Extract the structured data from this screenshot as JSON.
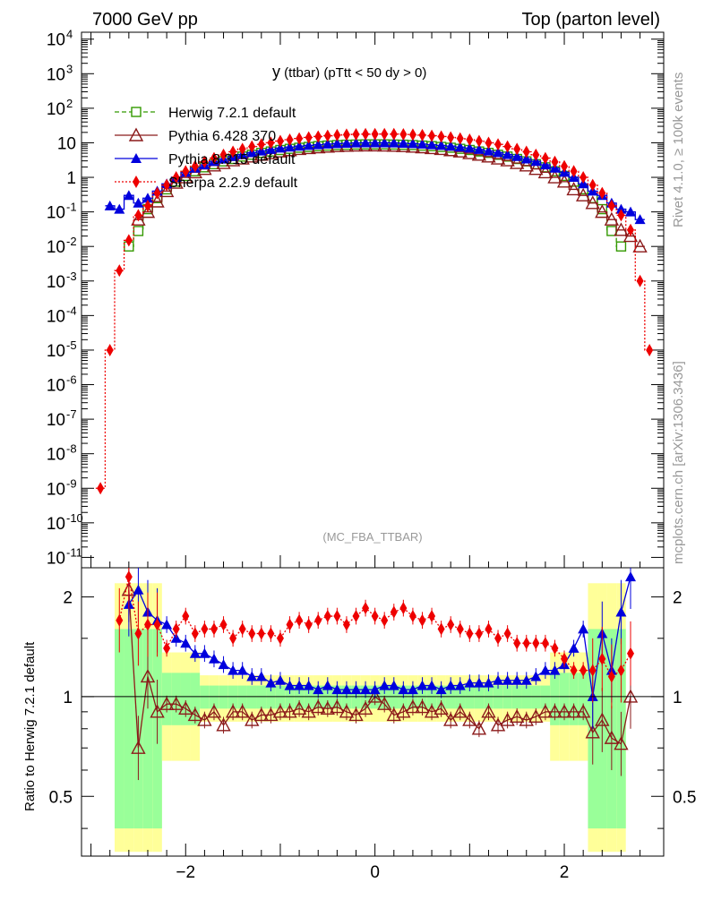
{
  "header": {
    "left": "7000 GeV pp",
    "right": "Top (parton level)"
  },
  "side": {
    "top_label": "Rivet 4.1.0, ≥ 100k events",
    "bottom_label": "mcplots.cern.ch [arXiv:1306.3436]"
  },
  "plot": {
    "title_main": "y",
    "title_sub": " (ttbar) (pTtt < 50 dy > 0)",
    "analysis_id": "(MC_FBA_TTBAR)"
  },
  "ratio": {
    "ylabel": "Ratio to Herwig 7.2.1 default",
    "yticks": [
      {
        "v": 0.5,
        "label": "0.5"
      },
      {
        "v": 1,
        "label": "1"
      },
      {
        "v": 2,
        "label": "2"
      }
    ]
  },
  "main_yticks": [
    {
      "e": -11,
      "label": "10"
    },
    {
      "e": -10,
      "label": "10"
    },
    {
      "e": -9,
      "label": "10"
    },
    {
      "e": -8,
      "label": "10"
    },
    {
      "e": -7,
      "label": "10"
    },
    {
      "e": -6,
      "label": "10"
    },
    {
      "e": -5,
      "label": "10"
    },
    {
      "e": -4,
      "label": "10"
    },
    {
      "e": -3,
      "label": "10"
    },
    {
      "e": -2,
      "label": "10"
    },
    {
      "e": -1,
      "label": "10"
    },
    {
      "e": 0,
      "label": "1"
    },
    {
      "e": 1,
      "label": "10"
    },
    {
      "e": 2,
      "label": "10"
    },
    {
      "e": 3,
      "label": "10"
    },
    {
      "e": 4,
      "label": "10"
    }
  ],
  "legend": [
    {
      "name": "Herwig 7.2.1 default",
      "color": "#339900",
      "marker": "open-square",
      "dash": "dashed"
    },
    {
      "name": "Pythia 6.428 370",
      "color": "#8b1a1a",
      "marker": "open-triangle",
      "dash": "solid"
    },
    {
      "name": "Pythia 8.315 default",
      "color": "#0000dd",
      "marker": "filled-triangle",
      "dash": "solid"
    },
    {
      "name": "Sherpa 2.2.9 default",
      "color": "#ee0000",
      "marker": "filled-diamond",
      "dash": "dotted"
    }
  ],
  "chart_data": {
    "type": "scatter",
    "xlabel": "y (ttbar)",
    "ylabel": "",
    "xlim": [
      -3.1,
      3.05
    ],
    "ylim_log10": [
      -11.3,
      4.2
    ],
    "ratio_ylim": [
      0.33,
      2.45
    ],
    "xticks": [
      -2,
      0,
      2
    ],
    "x": [
      -2.9,
      -2.8,
      -2.7,
      -2.6,
      -2.5,
      -2.4,
      -2.3,
      -2.2,
      -2.1,
      -2.0,
      -1.9,
      -1.8,
      -1.7,
      -1.6,
      -1.5,
      -1.4,
      -1.3,
      -1.2,
      -1.1,
      -1.0,
      -0.9,
      -0.8,
      -0.7,
      -0.6,
      -0.5,
      -0.4,
      -0.3,
      -0.2,
      -0.1,
      0.0,
      0.1,
      0.2,
      0.3,
      0.4,
      0.5,
      0.6,
      0.7,
      0.8,
      0.9,
      1.0,
      1.1,
      1.2,
      1.3,
      1.4,
      1.5,
      1.6,
      1.7,
      1.8,
      1.9,
      2.0,
      2.1,
      2.2,
      2.3,
      2.4,
      2.5,
      2.6,
      2.7,
      2.8,
      2.9
    ],
    "series": [
      {
        "name": "Herwig 7.2.1 default",
        "values": [
          null,
          null,
          null,
          0.01,
          0.028,
          0.12,
          0.25,
          0.45,
          0.75,
          1.1,
          1.5,
          1.95,
          2.4,
          2.9,
          3.4,
          4.0,
          4.5,
          5.1,
          5.6,
          6.2,
          6.7,
          7.2,
          7.6,
          8.0,
          8.3,
          8.6,
          8.8,
          8.9,
          9.0,
          9.0,
          9.0,
          8.9,
          8.8,
          8.6,
          8.3,
          8.0,
          7.6,
          7.2,
          6.7,
          6.2,
          5.6,
          5.1,
          4.5,
          4.0,
          3.4,
          2.9,
          2.4,
          1.95,
          1.5,
          1.1,
          0.75,
          0.45,
          0.25,
          0.12,
          0.028,
          0.01,
          null,
          null,
          null
        ],
        "ratio": [
          null,
          null,
          1.0,
          1.0,
          1.0,
          1.0,
          1.0,
          1.0,
          1.0,
          1.0,
          1.0,
          1.0,
          1.0,
          1.0,
          1.0,
          1.0,
          1.0,
          1.0,
          1.0,
          1.0,
          1.0,
          1.0,
          1.0,
          1.0,
          1.0,
          1.0,
          1.0,
          1.0,
          1.0,
          1.0,
          1.0,
          1.0,
          1.0,
          1.0,
          1.0,
          1.0,
          1.0,
          1.0,
          1.0,
          1.0,
          1.0,
          1.0,
          1.0,
          1.0,
          1.0,
          1.0,
          1.0,
          1.0,
          1.0,
          1.0,
          1.0,
          1.0,
          1.0,
          1.0,
          1.0,
          1.0,
          null,
          null,
          null
        ]
      },
      {
        "name": "Pythia 6.428 370",
        "values": [
          null,
          null,
          null,
          null,
          0.06,
          0.1,
          0.2,
          0.4,
          0.7,
          1.0,
          1.4,
          1.75,
          2.2,
          2.6,
          3.1,
          3.5,
          4.0,
          4.5,
          5.0,
          5.6,
          6.1,
          6.6,
          7.0,
          7.4,
          7.7,
          8.0,
          8.2,
          8.3,
          8.4,
          8.4,
          8.3,
          8.2,
          8.0,
          7.7,
          7.4,
          7.0,
          6.6,
          6.1,
          5.6,
          5.0,
          4.5,
          4.0,
          3.5,
          3.1,
          2.6,
          2.2,
          1.75,
          1.4,
          1.0,
          0.75,
          0.45,
          0.3,
          0.18,
          0.1,
          0.06,
          0.03,
          0.02,
          0.01,
          null
        ],
        "ratio": [
          null,
          null,
          null,
          2.1,
          0.7,
          1.15,
          0.9,
          0.95,
          0.95,
          0.92,
          0.88,
          0.85,
          0.9,
          0.82,
          0.9,
          0.9,
          0.85,
          0.88,
          0.88,
          0.9,
          0.9,
          0.92,
          0.9,
          0.93,
          0.92,
          0.93,
          0.9,
          0.88,
          0.92,
          1.0,
          0.95,
          0.88,
          0.9,
          0.93,
          0.93,
          0.9,
          0.92,
          0.85,
          0.9,
          0.85,
          0.8,
          0.9,
          0.82,
          0.85,
          0.87,
          0.85,
          0.87,
          0.9,
          0.9,
          0.9,
          0.9,
          0.9,
          0.78,
          0.85,
          0.75,
          0.72,
          1.0,
          null,
          null
        ]
      },
      {
        "name": "Pythia 8.315 default",
        "values": [
          null,
          0.15,
          0.12,
          0.3,
          0.18,
          0.25,
          0.4,
          0.65,
          1.0,
          1.4,
          1.85,
          2.3,
          2.9,
          3.4,
          4.0,
          4.6,
          5.2,
          5.8,
          6.4,
          7.0,
          7.5,
          8.0,
          8.4,
          8.8,
          9.2,
          9.5,
          9.7,
          9.9,
          10.0,
          10.0,
          10.0,
          9.9,
          9.7,
          9.5,
          9.2,
          8.8,
          8.4,
          8.0,
          7.5,
          7.0,
          6.4,
          5.8,
          5.2,
          4.6,
          4.0,
          3.4,
          2.9,
          2.3,
          1.85,
          1.4,
          1.0,
          0.65,
          0.4,
          0.3,
          0.18,
          0.12,
          0.1,
          0.06,
          null
        ],
        "ratio": [
          null,
          null,
          null,
          1.9,
          2.1,
          1.8,
          1.7,
          1.65,
          1.5,
          1.45,
          1.35,
          1.35,
          1.3,
          1.25,
          1.2,
          1.2,
          1.15,
          1.15,
          1.1,
          1.12,
          1.08,
          1.08,
          1.08,
          1.05,
          1.08,
          1.05,
          1.05,
          1.05,
          1.05,
          1.05,
          1.08,
          1.08,
          1.05,
          1.05,
          1.08,
          1.08,
          1.05,
          1.08,
          1.08,
          1.1,
          1.1,
          1.1,
          1.12,
          1.12,
          1.12,
          1.12,
          1.15,
          1.2,
          1.2,
          1.25,
          1.4,
          1.6,
          1.0,
          1.55,
          1.2,
          1.8,
          2.3,
          null,
          null
        ]
      },
      {
        "name": "Sherpa 2.2.9 default",
        "values": [
          1e-09,
          1e-05,
          0.002,
          0.015,
          0.08,
          0.15,
          0.35,
          0.6,
          1.0,
          1.5,
          2.1,
          2.8,
          3.6,
          4.5,
          5.5,
          6.6,
          7.8,
          9.0,
          10.0,
          11.2,
          12.3,
          13.3,
          14.3,
          15.2,
          16.0,
          16.7,
          17.2,
          17.6,
          17.8,
          17.9,
          17.9,
          17.8,
          17.6,
          17.2,
          16.7,
          16.0,
          15.2,
          14.3,
          13.3,
          12.3,
          11.2,
          10.0,
          9.0,
          7.8,
          6.6,
          5.5,
          4.5,
          3.6,
          2.8,
          2.1,
          1.5,
          1.0,
          0.6,
          0.35,
          0.15,
          0.08,
          0.03,
          0.001,
          1e-05
        ],
        "ratio": [
          null,
          null,
          1.7,
          2.3,
          1.55,
          1.65,
          1.65,
          1.4,
          1.6,
          1.75,
          1.55,
          1.6,
          1.6,
          1.65,
          1.5,
          1.6,
          1.55,
          1.55,
          1.55,
          1.5,
          1.65,
          1.7,
          1.65,
          1.7,
          1.75,
          1.75,
          1.65,
          1.75,
          1.85,
          1.75,
          1.7,
          1.8,
          1.85,
          1.75,
          1.7,
          1.75,
          1.6,
          1.65,
          1.6,
          1.55,
          1.55,
          1.6,
          1.5,
          1.55,
          1.45,
          1.45,
          1.45,
          1.45,
          1.4,
          1.3,
          1.2,
          1.2,
          1.2,
          1.3,
          1.15,
          1.2,
          1.35,
          null,
          null
        ]
      }
    ]
  }
}
